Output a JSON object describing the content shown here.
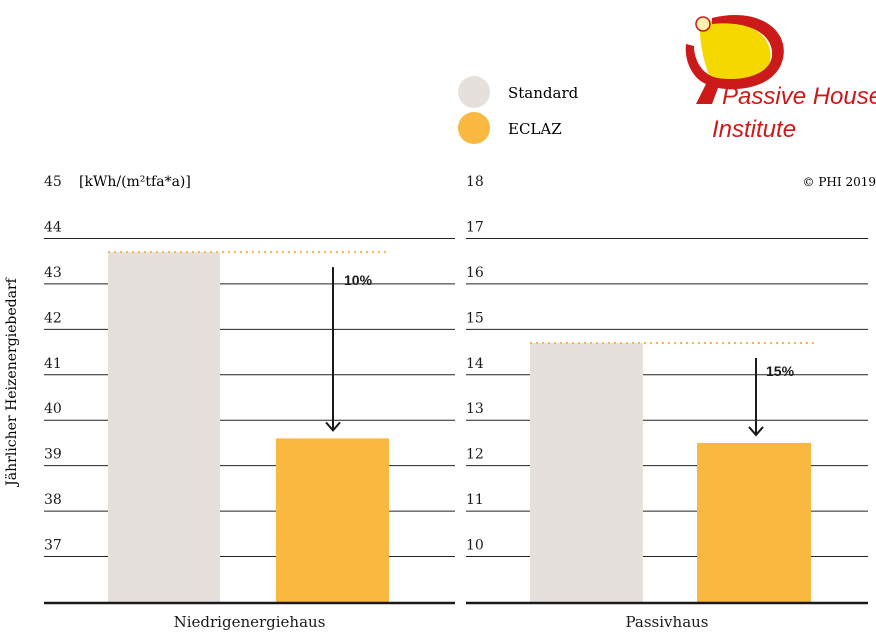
{
  "logo": {
    "line1": "Passive House",
    "line2": "Institute",
    "color": "#cc1a1a",
    "accent": "#f5d800"
  },
  "legend": [
    {
      "label": "Standard",
      "color": "#e6e0dd"
    },
    {
      "label": "ECLAZ",
      "color": "#f9b840"
    }
  ],
  "y_axis_label": "Jährlicher Heizenergiebedarf",
  "unit_label": "[kWh/(m²tfa*a)]",
  "copyright": "© PHI 2019",
  "chart_data": [
    {
      "type": "bar",
      "xlabel": "Niedrigenergiehaus",
      "ylabel": "Jährlicher Heizenergiebedarf",
      "unit": "[kWh/(m²tfa*a)]",
      "ylim": [
        36,
        45
      ],
      "yticks": [
        37,
        38,
        39,
        40,
        41,
        42,
        43,
        44,
        45
      ],
      "grid": true,
      "series": [
        {
          "name": "Standard",
          "value": 43.7
        },
        {
          "name": "ECLAZ",
          "value": 39.6
        }
      ],
      "annotation": "10%"
    },
    {
      "type": "bar",
      "xlabel": "Passivhaus",
      "ylabel": "Jährlicher Heizenergiebedarf",
      "ylim": [
        9,
        18
      ],
      "yticks": [
        10,
        11,
        12,
        13,
        14,
        15,
        16,
        17,
        18
      ],
      "grid": true,
      "series": [
        {
          "name": "Standard",
          "value": 14.7
        },
        {
          "name": "ECLAZ",
          "value": 12.5
        }
      ],
      "annotation": "15%"
    }
  ]
}
